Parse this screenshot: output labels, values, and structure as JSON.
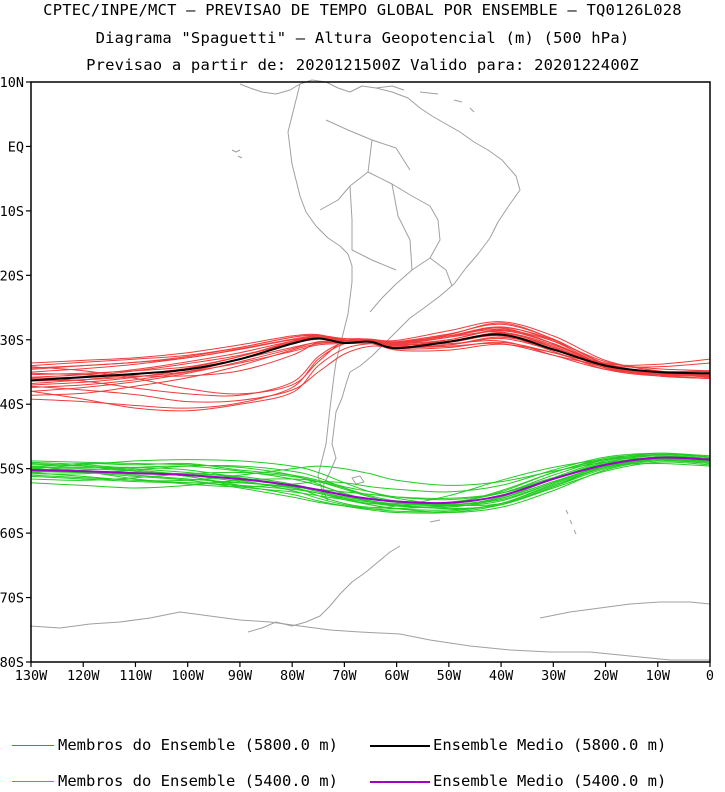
{
  "header": {
    "line1": "CPTEC/INPE/MCT — PREVISAO DE TEMPO GLOBAL POR ENSEMBLE — TQ0126L028",
    "line2": "Diagrama \"Spaguetti\" — Altura Geopotencial (m) (500 hPa)",
    "line3": "Previsao a partir de: 2020121500Z  Valido para: 2020122400Z"
  },
  "map": {
    "lat_labels": [
      "10N",
      "EQ",
      "10S",
      "20S",
      "30S",
      "40S",
      "50S",
      "60S",
      "70S",
      "80S"
    ],
    "lat_values": [
      10,
      0,
      -10,
      -20,
      -30,
      -40,
      -50,
      -60,
      -70,
      -80
    ],
    "lon_labels": [
      "130W",
      "120W",
      "110W",
      "100W",
      "90W",
      "80W",
      "70W",
      "60W",
      "50W",
      "40W",
      "30W",
      "20W",
      "10W",
      "0"
    ],
    "lon_values": [
      -130,
      -120,
      -110,
      -100,
      -90,
      -80,
      -70,
      -60,
      -50,
      -40,
      -30,
      -20,
      -10,
      0
    ],
    "extent": {
      "lon_min": -130,
      "lon_max": 0,
      "lat_min": -80,
      "lat_max": 10
    },
    "colors": {
      "member_5800": "#f03c3c",
      "mean_5800": "#000000",
      "member_5400": "#22cc22",
      "mean_5400": "#a000c8",
      "coast": "#a0a0a0"
    }
  },
  "chart_data": {
    "type": "line",
    "xlabel": "",
    "ylabel": "",
    "xlim": [
      -130,
      0
    ],
    "ylim": [
      -80,
      10
    ],
    "x": [
      -130,
      -120,
      -110,
      -100,
      -90,
      -80,
      -75,
      -70,
      -65,
      -60,
      -50,
      -40,
      -30,
      -20,
      -10,
      0
    ],
    "series": [
      {
        "name": "Ensemble Medio (5800.0 m)",
        "group": "5800",
        "kind": "mean",
        "values": [
          -36.3,
          -35.8,
          -35.3,
          -34.6,
          -33.0,
          -30.6,
          -29.8,
          -30.5,
          -30.3,
          -31.3,
          -30.3,
          -29.2,
          -31.5,
          -34.0,
          -35.0,
          -35.2
        ]
      },
      {
        "name": "Ensemble Medio (5400.0 m)",
        "group": "5400",
        "kind": "mean",
        "values": [
          -50.2,
          -50.4,
          -50.7,
          -51.0,
          -51.6,
          -52.6,
          -53.3,
          -54.1,
          -54.7,
          -55.1,
          -55.3,
          -54.2,
          -51.6,
          -49.4,
          -48.3,
          -48.6
        ]
      }
    ],
    "members_5800": [
      [
        -34.0,
        -33.5,
        -33.0,
        -32.4,
        -31.2,
        -29.6,
        -29.3,
        -30.0,
        -30.4,
        -31.0,
        -30.8,
        -29.8,
        -31.6,
        -33.6,
        -34.5,
        -34.8
      ],
      [
        -35.0,
        -34.5,
        -33.8,
        -32.8,
        -31.5,
        -30.0,
        -29.6,
        -30.2,
        -30.1,
        -30.4,
        -29.4,
        -28.4,
        -30.2,
        -33.4,
        -34.8,
        -35.6
      ],
      [
        -36.0,
        -35.7,
        -34.8,
        -33.7,
        -32.4,
        -30.6,
        -29.9,
        -30.2,
        -30.0,
        -30.6,
        -30.0,
        -28.6,
        -30.6,
        -34.0,
        -35.2,
        -35.6
      ],
      [
        -37.0,
        -36.6,
        -35.8,
        -34.6,
        -33.0,
        -31.2,
        -30.4,
        -30.4,
        -30.0,
        -30.1,
        -28.6,
        -27.2,
        -29.4,
        -33.2,
        -34.9,
        -35.8
      ],
      [
        -38.0,
        -37.4,
        -36.5,
        -35.2,
        -33.4,
        -31.4,
        -30.3,
        -30.2,
        -30.3,
        -30.7,
        -29.6,
        -28.1,
        -30.0,
        -33.7,
        -35.2,
        -35.8
      ],
      [
        -38.6,
        -38.3,
        -37.2,
        -35.9,
        -34.0,
        -31.6,
        -30.6,
        -30.4,
        -30.2,
        -30.3,
        -29.1,
        -27.6,
        -29.9,
        -33.8,
        -35.1,
        -35.5
      ],
      [
        -35.4,
        -35.2,
        -34.8,
        -34.2,
        -32.6,
        -30.4,
        -29.6,
        -30.1,
        -30.2,
        -30.7,
        -30.3,
        -29.2,
        -31.2,
        -34.1,
        -35.0,
        -35.2
      ],
      [
        -34.6,
        -34.0,
        -33.5,
        -32.6,
        -31.2,
        -29.6,
        -29.4,
        -30.2,
        -30.4,
        -31.4,
        -31.2,
        -30.4,
        -32.0,
        -34.3,
        -35.0,
        -34.9
      ],
      [
        -36.4,
        -36.2,
        -35.7,
        -34.9,
        -33.0,
        -30.4,
        -29.4,
        -29.8,
        -29.9,
        -30.3,
        -29.4,
        -28.2,
        -30.6,
        -34.2,
        -35.6,
        -36.0
      ],
      [
        -39.2,
        -39.6,
        -40.2,
        -40.6,
        -39.8,
        -37.4,
        -33.0,
        -30.6,
        -30.2,
        -30.8,
        -30.4,
        -29.4,
        -31.8,
        -34.6,
        -35.6,
        -35.4
      ],
      [
        -38.0,
        -39.2,
        -40.6,
        -41.0,
        -40.0,
        -38.2,
        -34.0,
        -31.4,
        -30.6,
        -30.6,
        -29.6,
        -28.8,
        -31.2,
        -34.4,
        -35.4,
        -35.2
      ],
      [
        -37.2,
        -37.8,
        -38.5,
        -39.6,
        -39.4,
        -37.8,
        -35.0,
        -32.2,
        -31.0,
        -31.2,
        -30.8,
        -29.6,
        -31.4,
        -34.2,
        -35.3,
        -35.1
      ],
      [
        -34.2,
        -34.8,
        -36.0,
        -37.6,
        -38.4,
        -37.0,
        -33.4,
        -30.2,
        -30.0,
        -30.8,
        -30.6,
        -30.2,
        -32.4,
        -34.6,
        -35.3,
        -35.3
      ],
      [
        -35.8,
        -36.4,
        -37.5,
        -38.4,
        -38.6,
        -36.6,
        -32.6,
        -30.4,
        -30.4,
        -31.0,
        -30.0,
        -28.5,
        -30.6,
        -33.9,
        -34.9,
        -34.8
      ],
      [
        -33.6,
        -33.2,
        -32.8,
        -32.0,
        -30.8,
        -29.4,
        -29.2,
        -30.1,
        -30.3,
        -31.2,
        -31.0,
        -30.6,
        -32.4,
        -34.0,
        -34.2,
        -33.6
      ],
      [
        -35.8,
        -35.4,
        -34.6,
        -33.4,
        -32.0,
        -30.2,
        -29.6,
        -30.2,
        -30.4,
        -31.6,
        -31.6,
        -30.7,
        -32.0,
        -33.8,
        -33.8,
        -33.0
      ],
      [
        -37.4,
        -37.0,
        -36.2,
        -35.0,
        -33.6,
        -31.8,
        -30.8,
        -30.6,
        -30.6,
        -31.3,
        -30.4,
        -28.9,
        -30.8,
        -34.0,
        -35.3,
        -35.7
      ],
      [
        -36.8,
        -36.2,
        -35.4,
        -34.4,
        -32.6,
        -30.2,
        -29.4,
        -30.0,
        -30.0,
        -30.5,
        -29.2,
        -27.4,
        -29.9,
        -33.8,
        -35.4,
        -36.0
      ],
      [
        -34.4,
        -34.0,
        -33.5,
        -32.8,
        -31.4,
        -29.9,
        -29.4,
        -30.0,
        -30.1,
        -30.9,
        -30.2,
        -29.0,
        -31.0,
        -34.2,
        -35.6,
        -36.0
      ],
      [
        -35.2,
        -35.4,
        -35.6,
        -35.6,
        -34.8,
        -32.4,
        -30.4,
        -30.2,
        -30.0,
        -30.4,
        -29.4,
        -28.0,
        -30.2,
        -34.0,
        -35.2,
        -35.2
      ]
    ],
    "members_5400": [
      [
        -49.2,
        -49.6,
        -50.4,
        -51.2,
        -52.8,
        -53.6,
        -54.2,
        -54.8,
        -55.4,
        -55.6,
        -55.4,
        -53.6,
        -50.6,
        -48.6,
        -48.0,
        -48.4
      ],
      [
        -49.8,
        -49.2,
        -49.4,
        -49.2,
        -50.2,
        -51.0,
        -51.8,
        -52.8,
        -53.6,
        -54.4,
        -54.8,
        -53.8,
        -51.0,
        -48.6,
        -47.6,
        -48.2
      ],
      [
        -50.4,
        -50.6,
        -50.6,
        -50.8,
        -51.2,
        -52.4,
        -53.4,
        -54.6,
        -55.6,
        -56.2,
        -56.4,
        -55.4,
        -52.4,
        -49.8,
        -48.6,
        -48.8
      ],
      [
        -51.2,
        -51.6,
        -52.0,
        -52.2,
        -52.2,
        -52.8,
        -53.4,
        -54.2,
        -55.0,
        -55.6,
        -56.2,
        -55.6,
        -53.0,
        -50.4,
        -49.0,
        -49.4
      ],
      [
        -50.0,
        -49.4,
        -48.8,
        -48.6,
        -48.8,
        -49.6,
        -50.6,
        -52.2,
        -53.6,
        -54.6,
        -55.6,
        -55.4,
        -52.8,
        -49.6,
        -48.2,
        -48.6
      ],
      [
        -49.6,
        -50.4,
        -51.6,
        -52.4,
        -52.8,
        -52.4,
        -52.0,
        -52.2,
        -52.8,
        -53.2,
        -53.6,
        -52.6,
        -50.2,
        -48.2,
        -47.6,
        -48.0
      ],
      [
        -50.8,
        -50.8,
        -50.2,
        -49.6,
        -49.6,
        -50.4,
        -51.4,
        -53.0,
        -54.4,
        -55.2,
        -55.6,
        -54.8,
        -52.2,
        -49.6,
        -48.6,
        -49.0
      ],
      [
        -50.2,
        -50.6,
        -50.8,
        -51.0,
        -51.8,
        -53.4,
        -54.6,
        -55.6,
        -56.2,
        -56.6,
        -56.6,
        -55.4,
        -52.6,
        -49.8,
        -48.4,
        -48.8
      ],
      [
        -49.4,
        -49.6,
        -50.2,
        -51.0,
        -52.0,
        -53.0,
        -53.8,
        -54.8,
        -55.6,
        -56.2,
        -56.8,
        -56.0,
        -53.4,
        -50.2,
        -48.8,
        -49.2
      ],
      [
        -51.6,
        -51.8,
        -51.4,
        -50.8,
        -50.6,
        -51.2,
        -52.0,
        -53.2,
        -54.4,
        -55.2,
        -55.8,
        -55.0,
        -52.2,
        -49.4,
        -48.2,
        -48.4
      ],
      [
        -50.6,
        -50.2,
        -49.8,
        -49.6,
        -50.4,
        -51.6,
        -52.6,
        -53.8,
        -55.0,
        -55.8,
        -56.0,
        -54.6,
        -51.6,
        -49.0,
        -48.0,
        -48.4
      ],
      [
        -49.0,
        -49.4,
        -50.0,
        -50.6,
        -51.4,
        -52.6,
        -53.6,
        -54.4,
        -55.0,
        -55.4,
        -55.2,
        -53.8,
        -51.4,
        -49.6,
        -49.2,
        -49.6
      ],
      [
        -52.2,
        -52.6,
        -53.0,
        -52.6,
        -51.8,
        -51.6,
        -52.0,
        -53.0,
        -54.2,
        -55.0,
        -55.4,
        -54.2,
        -51.6,
        -49.2,
        -48.2,
        -48.6
      ],
      [
        -50.2,
        -50.0,
        -50.4,
        -51.2,
        -52.6,
        -54.0,
        -55.0,
        -55.8,
        -56.4,
        -56.8,
        -56.8,
        -55.6,
        -52.8,
        -50.0,
        -48.6,
        -48.8
      ],
      [
        -49.8,
        -49.8,
        -49.8,
        -50.2,
        -51.4,
        -52.8,
        -54.2,
        -55.4,
        -56.0,
        -55.8,
        -54.2,
        -51.8,
        -49.8,
        -48.6,
        -48.4,
        -48.8
      ],
      [
        -50.6,
        -51.2,
        -51.8,
        -51.8,
        -51.0,
        -50.0,
        -49.6,
        -50.0,
        -50.8,
        -51.8,
        -52.6,
        -52.0,
        -50.4,
        -49.0,
        -48.6,
        -49.2
      ],
      [
        -50.0,
        -50.4,
        -51.0,
        -51.6,
        -52.2,
        -52.8,
        -53.2,
        -53.6,
        -54.0,
        -54.4,
        -54.6,
        -53.8,
        -51.6,
        -49.4,
        -48.4,
        -48.6
      ],
      [
        -50.4,
        -50.6,
        -51.2,
        -51.8,
        -53.0,
        -54.4,
        -55.2,
        -55.8,
        -56.2,
        -56.2,
        -55.6,
        -53.4,
        -50.6,
        -48.4,
        -47.8,
        -48.2
      ],
      [
        -48.8,
        -49.0,
        -49.2,
        -49.4,
        -49.8,
        -51.0,
        -52.4,
        -54.0,
        -55.2,
        -55.8,
        -55.8,
        -54.4,
        -51.4,
        -48.8,
        -47.8,
        -48.2
      ],
      [
        -51.0,
        -51.4,
        -51.8,
        -52.2,
        -52.6,
        -53.2,
        -53.8,
        -54.6,
        -55.2,
        -55.6,
        -55.6,
        -54.6,
        -52.0,
        -49.6,
        -48.6,
        -49.0
      ]
    ]
  },
  "legend": {
    "item1": "Membros do Ensemble (5800.0 m)",
    "item2": "Ensemble Medio (5800.0 m)",
    "item3": "Membros do Ensemble (5400.0 m)",
    "item4": "Ensemble Medio (5400.0 m)"
  }
}
